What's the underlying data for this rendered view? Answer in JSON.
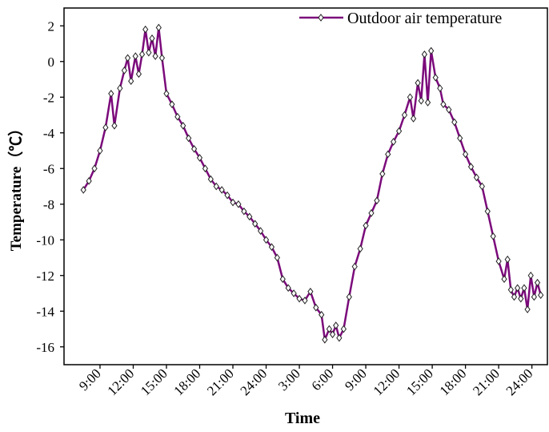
{
  "chart_data": {
    "type": "line",
    "x_label": "Time",
    "y_label": "Temperature（℃）",
    "xlim": [
      5.75,
      49.4
    ],
    "ylim": [
      -17,
      3
    ],
    "xticks": [
      {
        "value": 9,
        "label": "9:00"
      },
      {
        "value": 12,
        "label": "12:00"
      },
      {
        "value": 15,
        "label": "15:00"
      },
      {
        "value": 18,
        "label": "18:00"
      },
      {
        "value": 21,
        "label": "21:00"
      },
      {
        "value": 24,
        "label": "24:00"
      },
      {
        "value": 27,
        "label": "3:00"
      },
      {
        "value": 30,
        "label": "6:00"
      },
      {
        "value": 33,
        "label": "9:00"
      },
      {
        "value": 36,
        "label": "12:00"
      },
      {
        "value": 39,
        "label": "15:00"
      },
      {
        "value": 42,
        "label": "18:00"
      },
      {
        "value": 45,
        "label": "21:00"
      },
      {
        "value": 48,
        "label": "24:00"
      }
    ],
    "yticks": [
      2,
      0,
      -2,
      -4,
      -6,
      -8,
      -10,
      -12,
      -14,
      -16
    ],
    "legend": "top-right",
    "x": [
      7.5,
      8,
      8.5,
      9,
      9.5,
      10,
      10.3,
      10.8,
      11.2,
      11.5,
      11.8,
      12.2,
      12.5,
      12.8,
      13.1,
      13.4,
      13.7,
      14,
      14.3,
      14.6,
      15,
      15.5,
      16,
      16.5,
      17,
      17.5,
      18,
      18.5,
      19,
      19.5,
      20,
      20.5,
      21,
      21.5,
      22,
      22.5,
      23,
      23.5,
      24,
      24.5,
      25,
      25.5,
      26,
      26.5,
      27,
      27.5,
      28,
      28.5,
      29,
      29.3,
      29.7,
      30,
      30.3,
      30.6,
      31,
      31.5,
      32,
      32.5,
      33,
      33.5,
      34,
      34.5,
      35,
      35.5,
      36,
      36.5,
      37,
      37.3,
      37.7,
      38,
      38.3,
      38.6,
      38.9,
      39.3,
      39.7,
      40,
      40.5,
      41,
      41.5,
      42,
      42.5,
      43,
      43.5,
      44,
      44.5,
      45,
      45.5,
      45.8,
      46.1,
      46.4,
      46.7,
      47,
      47.3,
      47.6,
      47.9,
      48.2,
      48.5,
      48.8
    ],
    "series": [
      {
        "name": "Outdoor air temperature",
        "color": "#7b0a7b",
        "values": [
          -7.2,
          -6.7,
          -6.0,
          -5.0,
          -3.7,
          -1.8,
          -3.6,
          -1.5,
          -0.5,
          0.2,
          -1.1,
          0.3,
          -0.7,
          0.4,
          1.8,
          0.5,
          1.3,
          0.3,
          1.9,
          0.2,
          -1.8,
          -2.4,
          -3.1,
          -3.6,
          -4.3,
          -4.9,
          -5.4,
          -6.0,
          -6.6,
          -7.0,
          -7.2,
          -7.5,
          -7.9,
          -8.0,
          -8.4,
          -8.7,
          -9.1,
          -9.5,
          -10.0,
          -10.4,
          -11.0,
          -12.2,
          -12.7,
          -13.0,
          -13.3,
          -13.4,
          -12.9,
          -13.8,
          -14.2,
          -15.6,
          -15.0,
          -15.3,
          -14.8,
          -15.5,
          -15.0,
          -13.2,
          -11.5,
          -10.5,
          -9.2,
          -8.5,
          -7.8,
          -6.3,
          -5.2,
          -4.5,
          -3.9,
          -3.0,
          -2.0,
          -3.2,
          -1.2,
          -2.2,
          0.4,
          -2.3,
          0.6,
          -0.9,
          -1.5,
          -2.4,
          -2.7,
          -3.4,
          -4.3,
          -5.2,
          -5.9,
          -6.5,
          -7.0,
          -8.4,
          -9.8,
          -11.2,
          -12.2,
          -11.1,
          -12.8,
          -13.2,
          -12.7,
          -13.3,
          -12.7,
          -13.9,
          -12.0,
          -13.2,
          -12.4,
          -13.1
        ]
      }
    ]
  }
}
